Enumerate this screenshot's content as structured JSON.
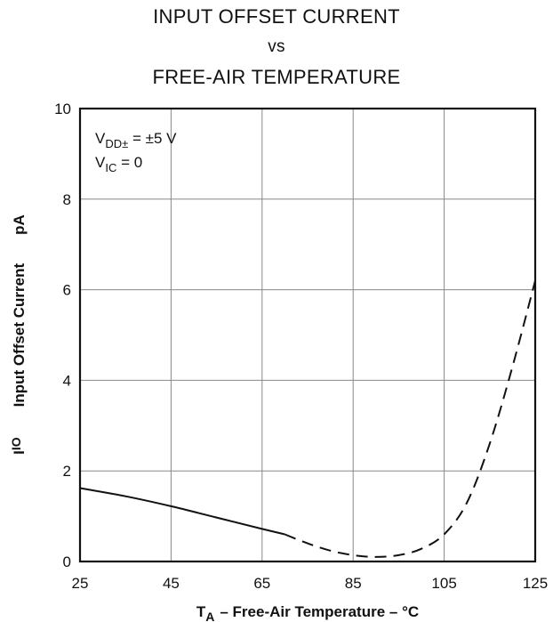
{
  "chart_data": {
    "type": "line",
    "title_lines": [
      "INPUT OFFSET CURRENT",
      "vs",
      "FREE-AIR TEMPERATURE"
    ],
    "xlabel": {
      "symbol": "T",
      "sub": "A",
      "text": "–  Free-Air Temperature  –  °C"
    },
    "ylabel": {
      "symbol": "I",
      "sub": "IO",
      "text": "Input Offset Current",
      "unit": "pA"
    },
    "xlim": [
      25,
      125
    ],
    "ylim": [
      0,
      10
    ],
    "xticks": [
      25,
      45,
      65,
      85,
      105,
      125
    ],
    "yticks": [
      0,
      2,
      4,
      6,
      8,
      10
    ],
    "grid": true,
    "annotations": [
      {
        "main": "V",
        "sub": "DD±",
        "rest": " =  ±5 V"
      },
      {
        "main": "V",
        "sub": "IC",
        "rest": " =  0"
      }
    ],
    "series": [
      {
        "style": "solid",
        "x": [
          25,
          35,
          45,
          55,
          65,
          70
        ],
        "y": [
          1.62,
          1.44,
          1.22,
          0.97,
          0.72,
          0.6
        ]
      },
      {
        "style": "dashed",
        "x": [
          70,
          75,
          80,
          85,
          90,
          95,
          100,
          105,
          110,
          115,
          120,
          125
        ],
        "y": [
          0.6,
          0.4,
          0.24,
          0.14,
          0.1,
          0.14,
          0.28,
          0.6,
          1.3,
          2.6,
          4.3,
          6.2
        ]
      }
    ]
  }
}
